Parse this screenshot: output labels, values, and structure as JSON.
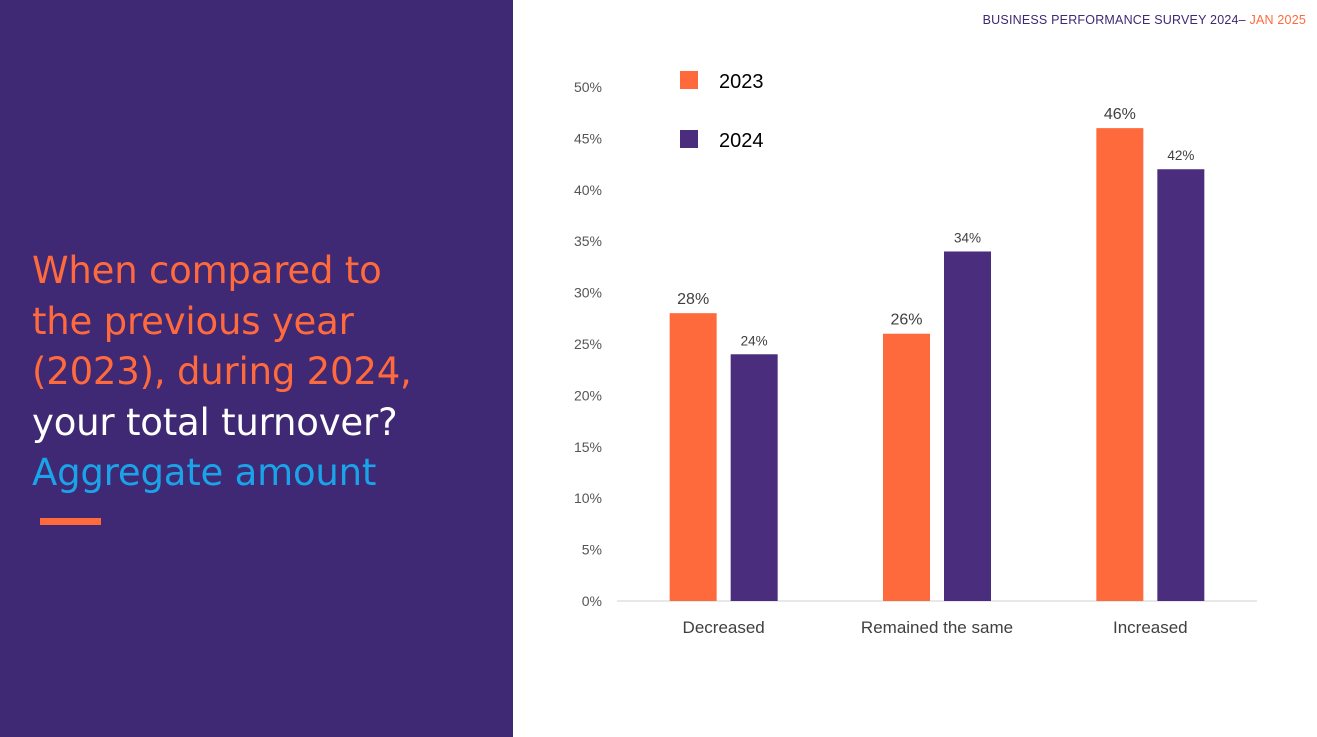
{
  "header": {
    "title_main": "BUSINESS PERFORMANCE SURVEY 2024–",
    "title_date": " JAN 2025",
    "main_color": "#3f2874",
    "date_color": "#ff6a3d"
  },
  "question": {
    "lines": [
      {
        "text": "When compared to",
        "color": "#ff6a3d"
      },
      {
        "text": "the previous year",
        "color": "#ff6a3d"
      },
      {
        "text": "(2023), during 2024,",
        "color": "#ff6a3d"
      },
      {
        "text": "your total turnover?",
        "color": "#ffffff"
      },
      {
        "text": "Aggregate amount",
        "color": "#1aa3e8"
      }
    ],
    "panel_color": "#3f2874",
    "accent_color": "#ff6a3d"
  },
  "chart_data": {
    "type": "bar",
    "categories": [
      "Decreased",
      "Remained the same",
      "Increased"
    ],
    "series": [
      {
        "name": "2023",
        "color": "#ff6a3d",
        "values": [
          28,
          26,
          46
        ],
        "labels": [
          "28%",
          "26%",
          "46%"
        ]
      },
      {
        "name": "2024",
        "color": "#4a2d7d",
        "values": [
          24,
          34,
          42
        ],
        "labels": [
          "24%",
          "34%",
          "42%"
        ]
      }
    ],
    "ylim": [
      0,
      50
    ],
    "yticks": [
      "0%",
      "5%",
      "10%",
      "15%",
      "20%",
      "25%",
      "30%",
      "35%",
      "40%",
      "45%",
      "50%"
    ],
    "ytick_values": [
      0,
      5,
      10,
      15,
      20,
      25,
      30,
      35,
      40,
      45,
      50
    ],
    "grid": false,
    "legend_position": "top-left",
    "title": "",
    "xlabel": "",
    "ylabel": ""
  }
}
